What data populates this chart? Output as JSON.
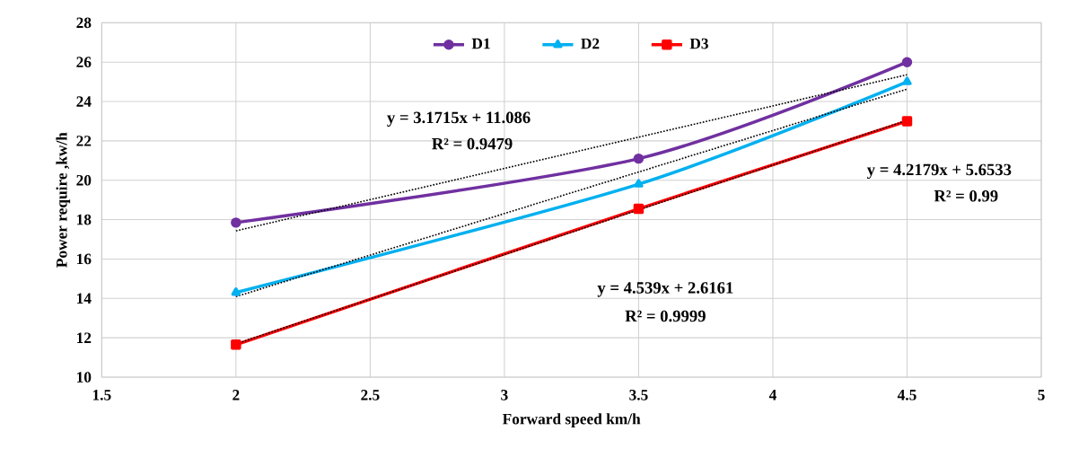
{
  "chart_data": {
    "type": "line",
    "xlabel": "Forward speed km/h",
    "ylabel": "Power require ,kw/h",
    "x": [
      2,
      3.5,
      4.5
    ],
    "series": [
      {
        "name": "D1",
        "color": "#7030a0",
        "values": [
          17.85,
          21.1,
          26.0
        ],
        "marker": "circle"
      },
      {
        "name": "D2",
        "color": "#00b0f0",
        "values": [
          14.3,
          19.8,
          25.0
        ],
        "marker": "triangle"
      },
      {
        "name": "D3",
        "color": "#ff0000",
        "values": [
          11.65,
          18.55,
          23.0
        ],
        "marker": "square"
      },
      {
        "type": "line",
        "color": "#000000",
        "values": [
          17.43,
          22.19,
          25.36
        ],
        "marker": "none",
        "line_style": "dotted"
      },
      {
        "type": "line",
        "color": "#000000",
        "values": [
          14.09,
          20.42,
          24.63
        ],
        "marker": "none",
        "line_style": "dotted"
      },
      {
        "type": "line",
        "color": "#000000",
        "values": [
          11.69,
          18.5,
          23.04
        ],
        "marker": "none",
        "line_style": "dotted"
      }
    ],
    "xlim": [
      1.5,
      5
    ],
    "xticks": [
      1.5,
      2,
      2.5,
      3,
      3.5,
      4,
      4.5,
      5
    ],
    "ylim": [
      10,
      28
    ],
    "yticks": [
      10,
      12,
      14,
      16,
      18,
      20,
      22,
      24,
      26,
      28
    ],
    "grid": true,
    "legend": "top",
    "annotations": [
      "y = 3.1715x + 11.086",
      "R² = 0.9479",
      "y = 4.2179x + 5.6533",
      "R² = 0.99",
      "y = 4.539x + 2.6161",
      "R² = 0.9999"
    ]
  }
}
